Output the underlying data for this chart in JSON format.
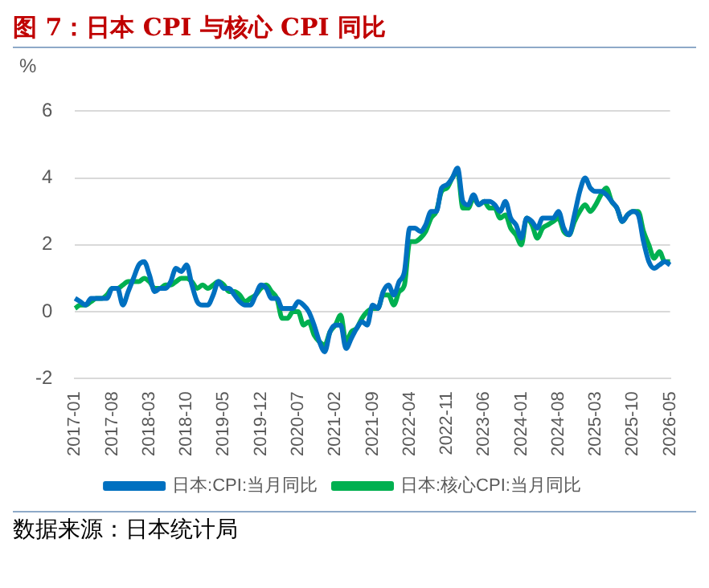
{
  "chart_data": {
    "type": "line",
    "title": "图 7：日本 CPI 与核心 CPI 同比",
    "ylabel": "%",
    "categories": [
      "2017-01",
      null,
      null,
      null,
      null,
      null,
      null,
      "2017-08",
      null,
      null,
      null,
      null,
      null,
      null,
      "2018-03",
      null,
      null,
      null,
      null,
      null,
      null,
      "2018-10",
      null,
      null,
      null,
      null,
      null,
      null,
      "2019-05",
      null,
      null,
      null,
      null,
      null,
      null,
      "2019-12",
      null,
      null,
      null,
      null,
      null,
      null,
      "2020-07",
      null,
      null,
      null,
      null,
      null,
      null,
      "2021-02",
      null,
      null,
      null,
      null,
      null,
      null,
      "2021-09",
      null,
      null,
      null,
      null,
      null,
      null,
      "2022-04",
      null,
      null,
      null,
      null,
      null,
      null,
      "2022-11",
      null,
      null,
      null,
      null,
      null,
      null,
      "2023-06",
      null,
      null,
      null,
      null,
      null,
      null,
      "2024-01",
      null,
      null,
      null,
      null,
      null,
      null,
      "2024-08",
      null,
      null,
      null,
      null,
      null,
      null,
      "2025-03",
      null,
      null,
      null,
      null,
      null,
      null,
      "2025-10",
      null,
      null,
      null,
      null,
      null,
      null,
      "2026-05"
    ],
    "series": [
      {
        "name": "日本:CPI:当月同比",
        "color": "#0070c0",
        "values": [
          0.4,
          0.3,
          0.2,
          0.4,
          0.4,
          0.4,
          0.4,
          0.7,
          0.7,
          0.2,
          0.6,
          1.0,
          1.4,
          1.5,
          1.1,
          0.6,
          0.7,
          0.7,
          0.9,
          1.3,
          1.2,
          1.4,
          0.8,
          0.3,
          0.2,
          0.2,
          0.5,
          0.9,
          0.7,
          0.7,
          0.5,
          0.3,
          0.2,
          0.2,
          0.5,
          0.8,
          0.7,
          0.4,
          0.4,
          0.1,
          0.1,
          0.1,
          0.3,
          0.2,
          0.0,
          -0.4,
          -0.9,
          -1.2,
          -0.6,
          -0.4,
          -0.4,
          -1.1,
          -0.8,
          -0.5,
          -0.3,
          -0.4,
          0.2,
          0.1,
          0.6,
          0.8,
          0.5,
          0.9,
          1.2,
          2.5,
          2.5,
          2.4,
          2.6,
          3.0,
          3.0,
          3.7,
          3.8,
          4.0,
          4.3,
          3.3,
          3.2,
          3.5,
          3.2,
          3.3,
          3.3,
          3.2,
          3.0,
          3.3,
          2.8,
          2.6,
          2.2,
          2.8,
          2.7,
          2.5,
          2.8,
          2.8,
          2.8,
          3.0,
          2.5,
          2.3,
          2.9,
          3.6,
          4.0,
          3.7,
          3.6,
          3.6,
          3.5,
          3.3,
          3.1,
          2.7,
          2.9,
          3.0,
          2.9,
          2.1,
          1.5,
          1.3,
          1.4,
          1.5,
          1.4
        ]
      },
      {
        "name": "日本:核心CPI:当月同比",
        "color": "#00b050",
        "values": [
          0.1,
          0.2,
          0.2,
          0.3,
          0.4,
          0.4,
          0.5,
          0.7,
          0.7,
          0.8,
          0.9,
          0.9,
          0.9,
          1.0,
          0.9,
          0.7,
          0.7,
          0.8,
          0.8,
          0.9,
          1.0,
          1.0,
          0.9,
          0.7,
          0.8,
          0.7,
          0.8,
          0.9,
          0.8,
          0.6,
          0.6,
          0.5,
          0.3,
          0.4,
          0.5,
          0.7,
          0.8,
          0.6,
          0.4,
          -0.2,
          -0.2,
          0.0,
          0.0,
          -0.4,
          -0.3,
          -0.7,
          -0.9,
          -1.0,
          -0.6,
          -0.4,
          -0.1,
          -0.9,
          -0.6,
          -0.5,
          -0.2,
          0.0,
          0.1,
          0.1,
          0.5,
          0.5,
          0.2,
          0.6,
          0.8,
          2.1,
          2.1,
          2.2,
          2.4,
          2.8,
          3.0,
          3.6,
          3.7,
          4.0,
          4.2,
          3.1,
          3.1,
          3.4,
          3.2,
          3.3,
          3.1,
          3.1,
          2.8,
          2.9,
          2.5,
          2.3,
          2.0,
          2.8,
          2.6,
          2.2,
          2.5,
          2.6,
          2.7,
          2.8,
          2.4,
          2.3,
          2.7,
          3.0,
          3.2,
          3.0,
          3.2,
          3.5,
          3.7,
          3.3,
          3.1,
          2.7,
          2.9,
          3.0,
          3.0,
          2.4,
          2.0,
          1.6,
          1.8,
          1.5,
          1.5
        ]
      }
    ],
    "ylim": [
      -2,
      6
    ],
    "yticks": [
      -2,
      0,
      2,
      4,
      6
    ],
    "grid": "y",
    "legend": "bottom",
    "marker": "none",
    "line_style": "solid",
    "annotations": [
      "数据来源：日本统计局"
    ]
  }
}
